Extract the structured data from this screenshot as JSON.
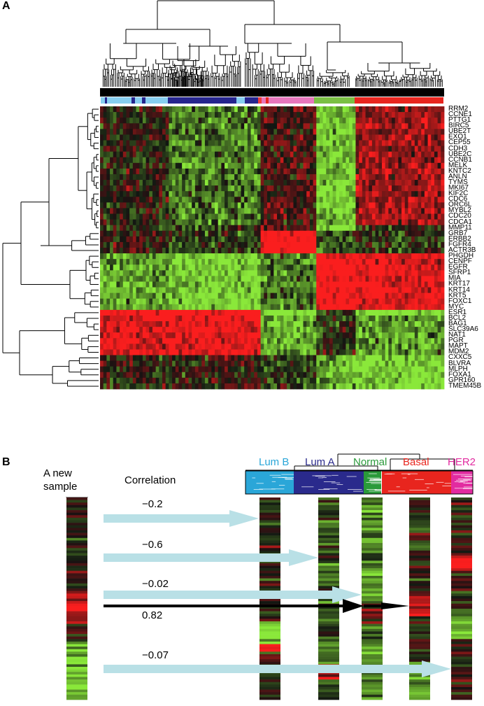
{
  "panel_a": {
    "label": "A",
    "subtype_colors": {
      "lum_b": "#87cef0",
      "lum_a": "#26258e",
      "her2": "#e777bd",
      "normal": "#7ac043",
      "basal": "#e8251e",
      "mixed_red": "#f23c3c"
    },
    "genes": [
      "RRM2",
      "CCNE1",
      "PTTG1",
      "BIRC5",
      "UBE2T",
      "EXO1",
      "CEP55",
      "CDH3",
      "UBE2C",
      "CCNB1",
      "MELK",
      "KNTC2",
      "ANLN",
      "TYMS",
      "MKI67",
      "KIF2C",
      "CDC6",
      "ORC6L",
      "MYBL2",
      "CDC20",
      "CDCA1",
      "MMP11",
      "GRB7",
      "ERBB2",
      "FGFR4",
      "ACTR3B",
      "PHGDH",
      "CENPF",
      "EGFR",
      "SFRP1",
      "MIA",
      "KRT17",
      "KRT14",
      "KRT5",
      "FOXC1",
      "MYC",
      "ESR1",
      "BCL2",
      "BAG1",
      "SLC39A6",
      "NAT1",
      "PGR",
      "MAPT",
      "MDM2",
      "CXXC5",
      "BLVRA",
      "MLPH",
      "FOXA1",
      "GPR160",
      "TMEM45B"
    ]
  },
  "panel_b": {
    "label": "B",
    "new_sample_label": "A new sample",
    "correlation_label": "Correlation",
    "subtypes": [
      {
        "name": "Lum B",
        "color": "#2aa6d8"
      },
      {
        "name": "Lum A",
        "color": "#2a2a8c"
      },
      {
        "name": "Normal",
        "color": "#2a9a3a"
      },
      {
        "name": "Basal",
        "color": "#e8251e"
      },
      {
        "name": "HER2",
        "color": "#e22ba0"
      }
    ],
    "correlations": [
      "−0.2",
      "−0.6",
      "−0.02",
      "0.82",
      "−0.07"
    ],
    "arrow_colors": {
      "light": "#b9e0e6",
      "strong": "#000000"
    }
  }
}
